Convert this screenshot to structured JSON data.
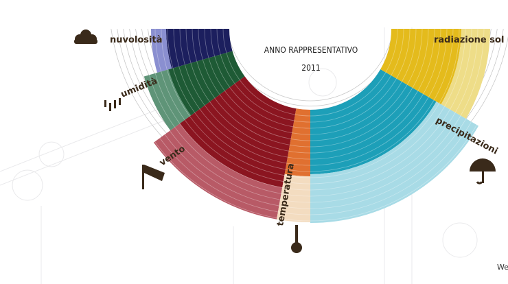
{
  "title": "ANNO RAPPRESENTATIVO",
  "year": "2011",
  "segments": [
    {
      "label": "nuvolosità"
    },
    {
      "label": "umidità"
    },
    {
      "label": "vento"
    },
    {
      "label": "temperatura"
    },
    {
      "label": "precipitazioni"
    },
    {
      "label": "radiazione sol"
    }
  ],
  "footer": "We"
}
